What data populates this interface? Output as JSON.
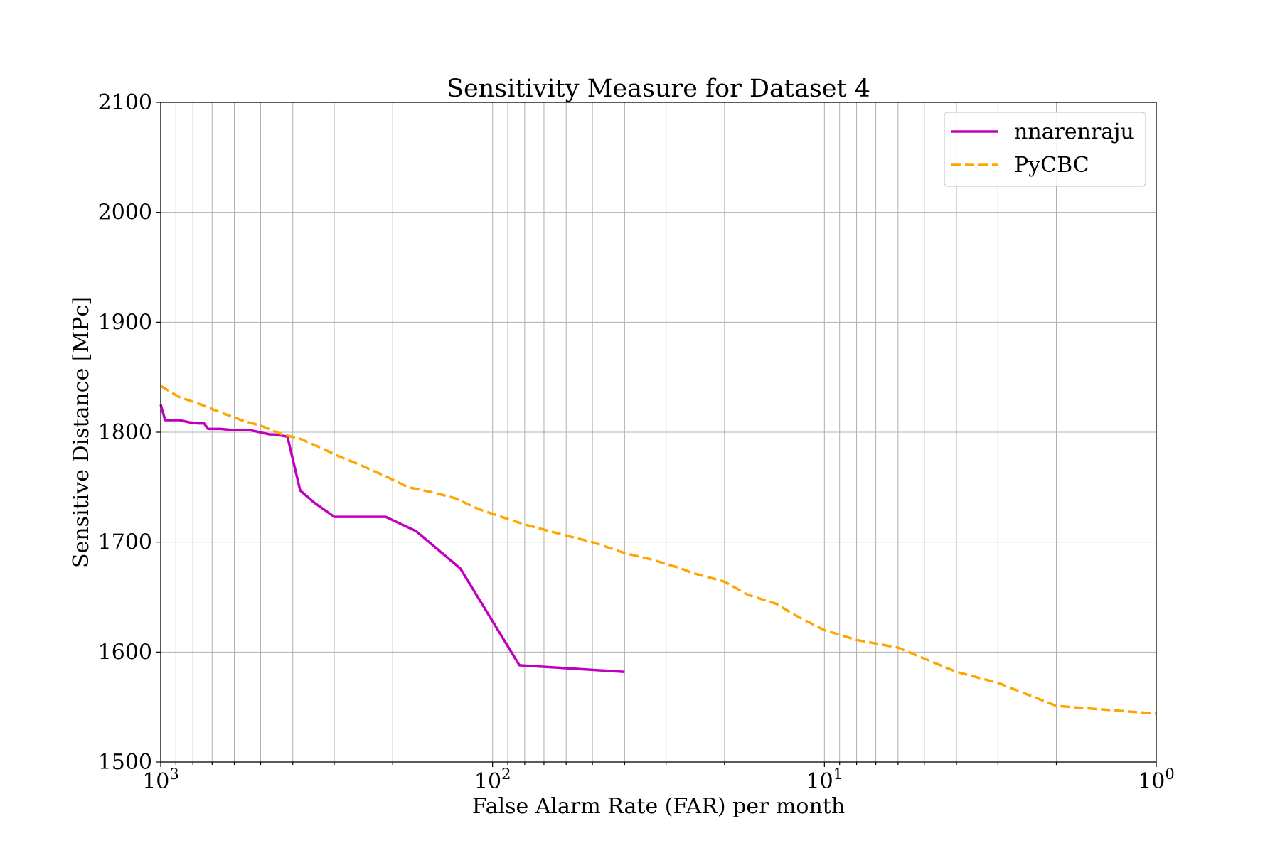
{
  "chart_data": {
    "type": "line",
    "title": "Sensitivity Measure for Dataset 4",
    "xlabel": "False Alarm Rate (FAR) per month",
    "ylabel": "Sensitive Distance [MPc]",
    "x_scale": "log",
    "x_reversed": true,
    "xlim": [
      1000,
      1
    ],
    "ylim": [
      1500,
      2100
    ],
    "x_ticks": [
      {
        "value": 1000,
        "base": "10",
        "exp": "3"
      },
      {
        "value": 100,
        "base": "10",
        "exp": "2"
      },
      {
        "value": 10,
        "base": "10",
        "exp": "1"
      },
      {
        "value": 1,
        "base": "10",
        "exp": "0"
      }
    ],
    "y_ticks": [
      "1500",
      "1600",
      "1700",
      "1800",
      "1900",
      "2000",
      "2100"
    ],
    "grid": "both (major and minor)",
    "legend_position": "top-right",
    "series": [
      {
        "name": "nnarenraju",
        "color": "#bf00bf",
        "style": "solid",
        "x": [
          1000,
          970,
          880,
          820,
          770,
          740,
          720,
          660,
          610,
          560,
          540,
          470,
          455,
          415,
          380,
          345,
          300,
          210,
          170,
          125,
          83,
          40
        ],
        "y": [
          1825,
          1811,
          1811,
          1809,
          1808,
          1808,
          1803,
          1803,
          1802,
          1802,
          1802,
          1798,
          1798,
          1796,
          1747,
          1736,
          1723,
          1723,
          1710,
          1676,
          1588,
          1582
        ]
      },
      {
        "name": "PyCBC",
        "color": "#ffa500",
        "style": "dashed",
        "x": [
          1000,
          880,
          770,
          660,
          560,
          500,
          430,
          380,
          330,
          290,
          250,
          210,
          180,
          150,
          130,
          110,
          92,
          80,
          60,
          50,
          40,
          33,
          27,
          25,
          20,
          17,
          14,
          12,
          10,
          8,
          6,
          4,
          3,
          2,
          1
        ],
        "y": [
          1842,
          1832,
          1826,
          1818,
          1810,
          1806,
          1798,
          1794,
          1786,
          1778,
          1770,
          1760,
          1750,
          1745,
          1740,
          1730,
          1722,
          1716,
          1706,
          1700,
          1690,
          1684,
          1676,
          1672,
          1664,
          1652,
          1644,
          1632,
          1620,
          1611,
          1604,
          1582,
          1572,
          1551,
          1544
        ]
      }
    ]
  }
}
